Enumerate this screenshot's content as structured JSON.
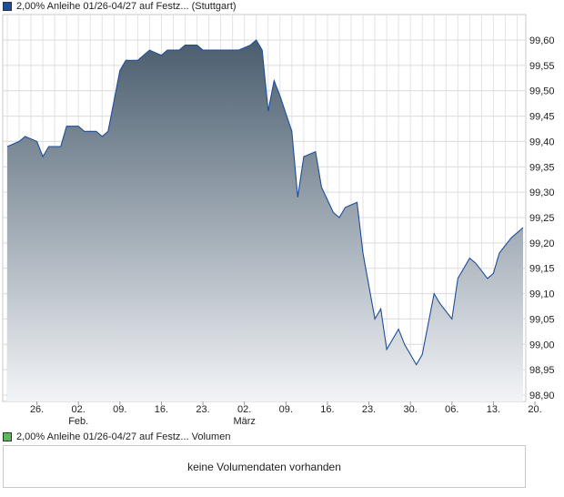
{
  "legend": {
    "price_series": "2,00% Anleihe 01/26-04/27 auf Festz... (Stuttgart)",
    "price_color": "#1f4e99",
    "volume_series": "2,00% Anleihe 01/26-04/27 auf Festz... Volumen",
    "volume_color": "#5cb85c"
  },
  "volume_panel": {
    "message": "keine Volumendaten vorhanden"
  },
  "chart_data": {
    "type": "area",
    "title": "",
    "xlabel": "",
    "ylabel": "",
    "ylim": [
      98.9,
      99.6
    ],
    "y_ticks": [
      "99,60",
      "99,55",
      "99,50",
      "99,45",
      "99,40",
      "99,35",
      "99,30",
      "99,25",
      "99,20",
      "99,15",
      "99,10",
      "99,05",
      "99,00",
      "98,95",
      "98,90"
    ],
    "x_ticks": [
      {
        "day": 5,
        "label": "26."
      },
      {
        "day": 12,
        "label": "02.",
        "month": "Feb."
      },
      {
        "day": 19,
        "label": "09."
      },
      {
        "day": 26,
        "label": "16."
      },
      {
        "day": 33,
        "label": "23."
      },
      {
        "day": 40,
        "label": "02.",
        "month": "März"
      },
      {
        "day": 47,
        "label": "09."
      },
      {
        "day": 54,
        "label": "16."
      },
      {
        "day": 61,
        "label": "23."
      },
      {
        "day": 68,
        "label": "30."
      },
      {
        "day": 75,
        "label": "06."
      },
      {
        "day": 82,
        "label": "13."
      },
      {
        "day": 89,
        "label": "20."
      }
    ],
    "grid": true,
    "series": [
      {
        "name": "2,00% Anleihe 01/26-04/27 auf Festz... (Stuttgart)",
        "points": [
          [
            0,
            99.39
          ],
          [
            2,
            99.4
          ],
          [
            3,
            99.41
          ],
          [
            5,
            99.4
          ],
          [
            6,
            99.37
          ],
          [
            7,
            99.39
          ],
          [
            9,
            99.39
          ],
          [
            10,
            99.43
          ],
          [
            12,
            99.43
          ],
          [
            13,
            99.42
          ],
          [
            15,
            99.42
          ],
          [
            16,
            99.41
          ],
          [
            17,
            99.42
          ],
          [
            19,
            99.54
          ],
          [
            20,
            99.56
          ],
          [
            22,
            99.56
          ],
          [
            24,
            99.58
          ],
          [
            26,
            99.57
          ],
          [
            27,
            99.58
          ],
          [
            29,
            99.58
          ],
          [
            30,
            99.59
          ],
          [
            32,
            99.59
          ],
          [
            33,
            99.58
          ],
          [
            35,
            99.58
          ],
          [
            36,
            99.58
          ],
          [
            38,
            99.58
          ],
          [
            39,
            99.58
          ],
          [
            41,
            99.59
          ],
          [
            42,
            99.6
          ],
          [
            43,
            99.58
          ],
          [
            44,
            99.46
          ],
          [
            45,
            99.52
          ],
          [
            46,
            99.49
          ],
          [
            48,
            99.42
          ],
          [
            49,
            99.29
          ],
          [
            50,
            99.37
          ],
          [
            52,
            99.38
          ],
          [
            53,
            99.31
          ],
          [
            55,
            99.26
          ],
          [
            56,
            99.25
          ],
          [
            57,
            99.27
          ],
          [
            59,
            99.28
          ],
          [
            60,
            99.18
          ],
          [
            62,
            99.05
          ],
          [
            63,
            99.07
          ],
          [
            64,
            98.99
          ],
          [
            66,
            99.03
          ],
          [
            67,
            99.0
          ],
          [
            69,
            98.96
          ],
          [
            70,
            98.98
          ],
          [
            72,
            99.1
          ],
          [
            73,
            99.08
          ],
          [
            75,
            99.05
          ],
          [
            76,
            99.13
          ],
          [
            78,
            99.17
          ],
          [
            79,
            99.16
          ],
          [
            81,
            99.13
          ],
          [
            82,
            99.14
          ],
          [
            83,
            99.18
          ],
          [
            85,
            99.21
          ],
          [
            87,
            99.23
          ]
        ]
      }
    ]
  }
}
